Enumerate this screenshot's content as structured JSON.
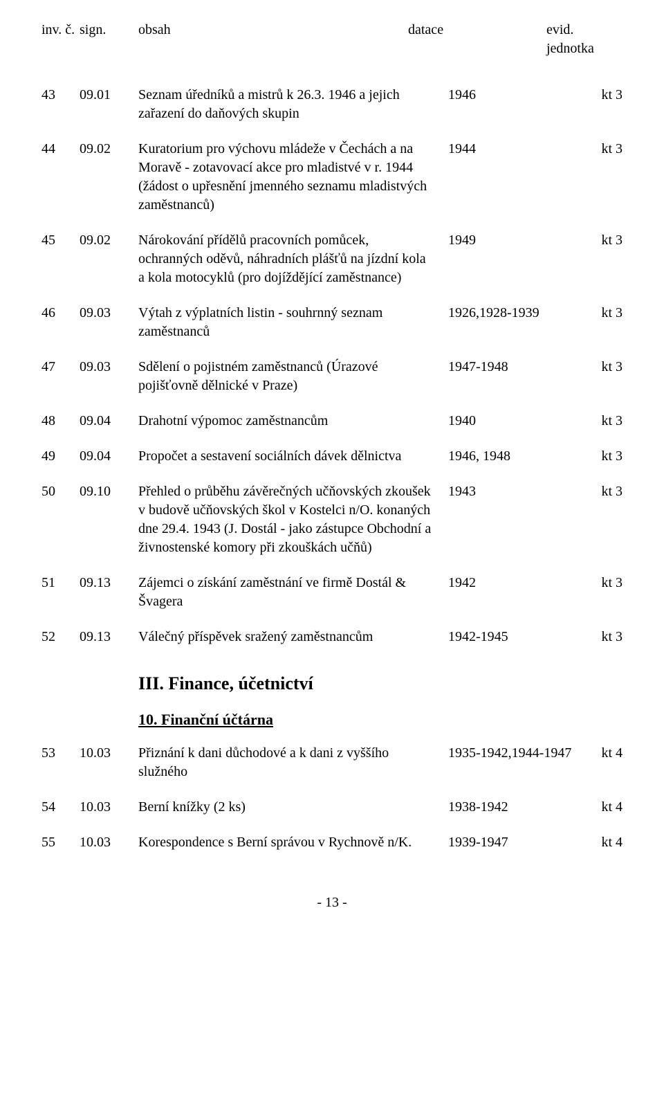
{
  "header": {
    "inv": "inv. č.",
    "sign": "sign.",
    "obsah": "obsah",
    "datace": "datace",
    "evid": "evid. jednotka"
  },
  "rows": [
    {
      "inv": "43",
      "sign": "09.01",
      "obsah": "Seznam úředníků a mistrů k 26.3. 1946 a jejich zařazení do daňových skupin",
      "datace": "1946",
      "evid": "kt 3"
    },
    {
      "inv": "44",
      "sign": "09.02",
      "obsah": "Kuratorium pro výchovu mládeže v Čechách a na Moravě - zotavovací akce pro mladistvé v r. 1944 (žádost o upřesnění jmenného seznamu mladistvých zaměstnanců)",
      "datace": "1944",
      "evid": "kt 3"
    },
    {
      "inv": "45",
      "sign": "09.02",
      "obsah": "Nárokování přídělů pracovních pomůcek, ochranných oděvů, náhradních plášťů na jízdní kola a kola motocyklů (pro dojíždějící zaměstnance)",
      "datace": "1949",
      "evid": "kt 3"
    },
    {
      "inv": "46",
      "sign": "09.03",
      "obsah": "Výtah z výplatních listin - souhrnný seznam zaměstnanců",
      "datace": "1926,1928-1939",
      "evid": "kt 3"
    },
    {
      "inv": "47",
      "sign": "09.03",
      "obsah": "Sdělení o pojistném zaměstnanců (Úrazové pojišťovně dělnické v Praze)",
      "datace": "1947-1948",
      "evid": "kt 3"
    },
    {
      "inv": "48",
      "sign": "09.04",
      "obsah": "Drahotní výpomoc zaměstnancům",
      "datace": "1940",
      "evid": "kt 3"
    },
    {
      "inv": "49",
      "sign": "09.04",
      "obsah": "Propočet a sestavení sociálních dávek dělnictva",
      "datace": "1946, 1948",
      "evid": "kt 3"
    },
    {
      "inv": "50",
      "sign": "09.10",
      "obsah": "Přehled o průběhu závěrečných učňovských zkoušek v budově učňovských škol v Kostelci n/O. konaných dne 29.4. 1943 (J. Dostál - jako zástupce Obchodní a živnostenské komory při zkouškách učňů)",
      "datace": "1943",
      "evid": "kt 3"
    },
    {
      "inv": "51",
      "sign": "09.13",
      "obsah": "Zájemci o získání zaměstnání ve firmě Dostál & Švagera",
      "datace": "1942",
      "evid": "kt 3"
    },
    {
      "inv": "52",
      "sign": "09.13",
      "obsah": "Válečný příspěvek sražený zaměstnancům",
      "datace": "1942-1945",
      "evid": "kt 3"
    }
  ],
  "section": "III. Finance, účetnictví",
  "subsection": "10. Finanční účtárna",
  "rows2": [
    {
      "inv": "53",
      "sign": "10.03",
      "obsah": "Přiznání k dani důchodové a k dani z vyššího služného",
      "datace": "1935-1942,1944-1947",
      "evid": "kt 4"
    },
    {
      "inv": "54",
      "sign": "10.03",
      "obsah": "Berní knížky (2 ks)",
      "datace": "1938-1942",
      "evid": "kt 4"
    },
    {
      "inv": "55",
      "sign": "10.03",
      "obsah": "Korespondence s Berní správou v Rychnově n/K.",
      "datace": "1939-1947",
      "evid": "kt 4"
    }
  ],
  "pageNum": "- 13 -"
}
